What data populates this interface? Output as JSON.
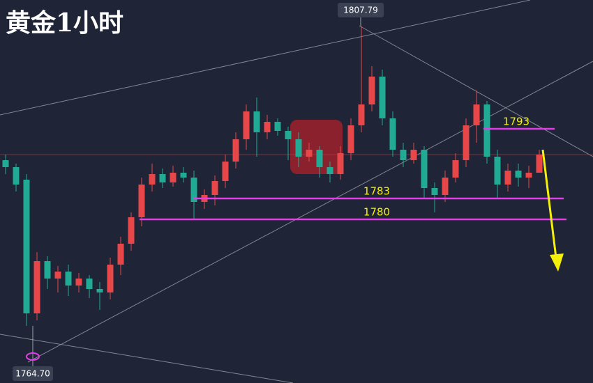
{
  "chart_data": {
    "type": "candlestick",
    "title": "黄金1小时",
    "ylim": [
      1756.5,
      1811.5
    ],
    "up_color": "#e8474a",
    "down_color": "#22ab94",
    "series": {
      "open": [
        1788.5,
        1787.5,
        1785.7,
        1766.5,
        1774.0,
        1771.5,
        1772.5,
        1770.5,
        1771.5,
        1770.0,
        1769.5,
        1773.5,
        1776.5,
        1780.3,
        1785.0,
        1786.5,
        1785.3,
        1786.7,
        1786.0,
        1782.5,
        1783.5,
        1785.5,
        1788.3,
        1791.5,
        1795.5,
        1792.5,
        1794.0,
        1792.7,
        1791.5,
        1789.0,
        1790.0,
        1787.5,
        1786.5,
        1789.5,
        1793.5,
        1796.5,
        1800.5,
        1794.5,
        1790.0,
        1788.5,
        1790.0,
        1784.5,
        1783.5,
        1786.0,
        1788.5,
        1793.5,
        1796.5,
        1789.0,
        1785.0,
        1787.0,
        1786.0,
        1786.7
      ],
      "high": [
        1789.3,
        1788.0,
        1786.5,
        1775.3,
        1774.7,
        1773.3,
        1773.5,
        1772.3,
        1772.0,
        1771.0,
        1774.5,
        1777.5,
        1781.0,
        1786.0,
        1788.0,
        1787.3,
        1787.7,
        1787.5,
        1787.0,
        1784.3,
        1786.3,
        1789.3,
        1792.5,
        1796.5,
        1797.5,
        1795.0,
        1794.5,
        1793.3,
        1792.5,
        1791.0,
        1790.5,
        1788.3,
        1790.5,
        1794.5,
        1807.79,
        1802.0,
        1801.5,
        1795.5,
        1791.0,
        1791.0,
        1790.5,
        1785.3,
        1787.0,
        1789.5,
        1794.5,
        1798.5,
        1797.0,
        1790.0,
        1788.0,
        1788.0,
        1787.7,
        1790.0
      ],
      "low": [
        1786.5,
        1784.0,
        1764.7,
        1765.5,
        1770.0,
        1769.5,
        1769.0,
        1769.5,
        1768.7,
        1767.0,
        1768.5,
        1772.0,
        1775.5,
        1779.0,
        1784.0,
        1784.5,
        1784.7,
        1785.3,
        1780.0,
        1781.5,
        1782.0,
        1784.5,
        1787.3,
        1790.0,
        1789.0,
        1791.5,
        1792.0,
        1788.5,
        1787.5,
        1788.3,
        1786.0,
        1785.3,
        1785.7,
        1788.5,
        1792.5,
        1795.5,
        1793.5,
        1789.0,
        1787.5,
        1788.0,
        1783.0,
        1781.0,
        1782.5,
        1785.3,
        1787.5,
        1791.0,
        1788.0,
        1783.0,
        1784.0,
        1784.7,
        1784.5,
        1787.0
      ],
      "close": [
        1787.5,
        1785.0,
        1766.5,
        1774.0,
        1771.5,
        1772.5,
        1770.5,
        1771.5,
        1770.0,
        1769.5,
        1773.5,
        1776.5,
        1780.3,
        1785.0,
        1786.5,
        1785.3,
        1786.7,
        1786.0,
        1782.5,
        1783.5,
        1785.5,
        1788.3,
        1791.5,
        1795.5,
        1792.5,
        1794.0,
        1792.7,
        1791.5,
        1789.0,
        1790.0,
        1787.5,
        1786.5,
        1789.5,
        1793.5,
        1796.5,
        1800.5,
        1794.5,
        1790.0,
        1788.5,
        1790.0,
        1784.5,
        1783.5,
        1786.0,
        1788.5,
        1793.5,
        1796.5,
        1789.0,
        1785.0,
        1787.0,
        1786.0,
        1786.7,
        1789.3
      ]
    },
    "levels": [
      {
        "value": 1793,
        "color": "#e23ee6"
      },
      {
        "value": 1783,
        "color": "#e23ee6"
      },
      {
        "value": 1780,
        "color": "#e23ee6"
      }
    ],
    "high_label": {
      "value": 1807.79,
      "label": "1807.79"
    },
    "low_label": {
      "value": 1764.7,
      "label": "1764.70"
    }
  }
}
